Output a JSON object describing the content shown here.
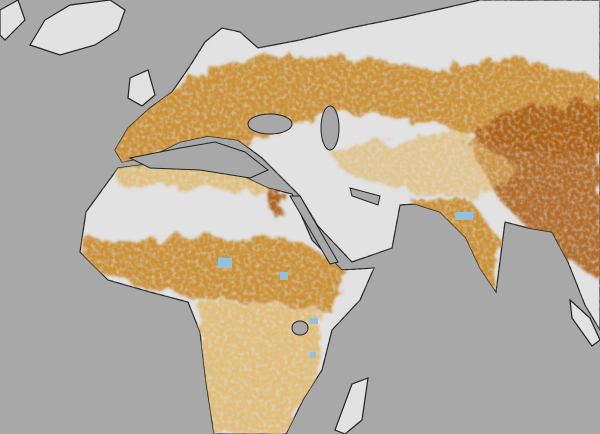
{
  "map": {
    "colors": {
      "ocean": "#a8a8a8",
      "space": "#ffffff",
      "land_base": "#e2e2e2",
      "high": "#a85a12",
      "medium": "#c98a2a",
      "low": "#e0b25a",
      "negative": "#8fc3e0",
      "coast": "#222222"
    },
    "regions": [
      "europe",
      "africa",
      "arabia",
      "asia",
      "india",
      "greenland",
      "madagascar",
      "british-isles"
    ]
  }
}
